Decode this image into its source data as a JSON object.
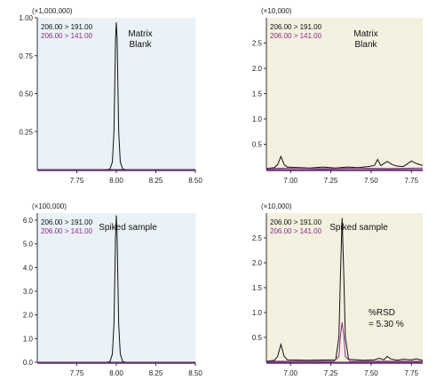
{
  "chart_data": [
    {
      "type": "line",
      "title": "",
      "multiplier_label": "(×1,000,000)",
      "annotation_lines": [
        "Matrix",
        "Blank"
      ],
      "background": "#eaf2f7",
      "xlim": [
        7.5,
        8.5
      ],
      "ylim": [
        0,
        1.0
      ],
      "x_ticks": [
        7.75,
        8.0,
        8.25,
        8.5
      ],
      "x_tick_labels": [
        "7.75",
        "8.00",
        "8.25",
        "8.50"
      ],
      "y_ticks": [
        0.25,
        0.5,
        0.75,
        1.0
      ],
      "y_tick_labels": [
        "0.25",
        "0.50",
        "0.75",
        "1.00"
      ],
      "series": [
        {
          "name": "206.00 > 191.00",
          "color": "#111111",
          "x": [
            7.5,
            7.94,
            7.96,
            7.975,
            7.985,
            7.99,
            7.995,
            8.0,
            8.005,
            8.01,
            8.015,
            8.025,
            8.04,
            8.06,
            8.5
          ],
          "y": [
            0,
            0,
            0.004,
            0.05,
            0.25,
            0.55,
            0.86,
            0.97,
            0.86,
            0.55,
            0.25,
            0.05,
            0.004,
            0,
            0
          ]
        },
        {
          "name": "206.00 > 141.00",
          "color": "#8a2b8a",
          "x": [
            7.5,
            8.5
          ],
          "y": [
            0,
            0
          ]
        }
      ]
    },
    {
      "type": "line",
      "title": "",
      "multiplier_label": "(×10,000)",
      "annotation_lines": [
        "Matrix",
        "Blank"
      ],
      "background": "#f3f0df",
      "xlim": [
        6.85,
        7.82
      ],
      "ylim": [
        0,
        3.0
      ],
      "x_ticks": [
        7.0,
        7.25,
        7.5,
        7.75
      ],
      "x_tick_labels": [
        "7.00",
        "7.25",
        "7.50",
        "7.75"
      ],
      "y_ticks": [
        0.5,
        1.0,
        1.5,
        2.0,
        2.5
      ],
      "y_tick_labels": [
        "0.5",
        "1.0",
        "1.5",
        "2.0",
        "2.5"
      ],
      "series": [
        {
          "name": "206.00 > 191.00",
          "color": "#111111",
          "x": [
            6.85,
            6.9,
            6.92,
            6.94,
            6.96,
            6.98,
            7.05,
            7.12,
            7.2,
            7.28,
            7.35,
            7.42,
            7.48,
            7.52,
            7.54,
            7.56,
            7.6,
            7.63,
            7.66,
            7.7,
            7.75,
            7.78,
            7.82
          ],
          "y": [
            0.02,
            0.04,
            0.1,
            0.26,
            0.1,
            0.05,
            0.04,
            0.03,
            0.05,
            0.03,
            0.05,
            0.04,
            0.06,
            0.08,
            0.2,
            0.08,
            0.16,
            0.1,
            0.07,
            0.06,
            0.17,
            0.12,
            0.08
          ]
        },
        {
          "name": "206.00 > 141.00",
          "color": "#8a2b8a",
          "x": [
            6.85,
            7.0,
            7.2,
            7.4,
            7.6,
            7.82
          ],
          "y": [
            0.02,
            0.03,
            0.02,
            0.03,
            0.02,
            0.03
          ]
        }
      ]
    },
    {
      "type": "line",
      "title": "",
      "multiplier_label": "(×100,000)",
      "annotation_lines": [
        "Spiked sample"
      ],
      "background": "#eaf2f7",
      "xlim": [
        7.5,
        8.5
      ],
      "ylim": [
        0,
        6.3
      ],
      "x_ticks": [
        7.75,
        8.0,
        8.25,
        8.5
      ],
      "x_tick_labels": [
        "7.75",
        "8.00",
        "8.25",
        "8.50"
      ],
      "y_ticks": [
        0,
        1,
        2,
        3,
        4,
        5,
        6
      ],
      "y_tick_labels": [
        "0.0",
        "1.0",
        "2.0",
        "3.0",
        "4.0",
        "5.0",
        "6.0"
      ],
      "series": [
        {
          "name": "206.00 > 191.00",
          "color": "#111111",
          "x": [
            7.5,
            7.94,
            7.96,
            7.975,
            7.985,
            7.99,
            7.995,
            8.0,
            8.005,
            8.01,
            8.015,
            8.025,
            8.04,
            8.06,
            8.5
          ],
          "y": [
            0,
            0,
            0.03,
            0.35,
            1.6,
            3.4,
            5.3,
            6.2,
            5.3,
            3.4,
            1.6,
            0.35,
            0.03,
            0,
            0
          ]
        },
        {
          "name": "206.00 > 141.00",
          "color": "#8a2b8a",
          "x": [
            7.5,
            8.5
          ],
          "y": [
            0,
            0
          ]
        }
      ]
    },
    {
      "type": "line",
      "title": "",
      "multiplier_label": "(×10,000)",
      "annotation_lines": [
        "Spiked sample"
      ],
      "extra_annotation_lines": [
        "%RSD",
        "= 5.30 %"
      ],
      "background": "#f3f0df",
      "xlim": [
        6.85,
        7.82
      ],
      "ylim": [
        0,
        3.0
      ],
      "x_ticks": [
        7.0,
        7.25,
        7.5,
        7.75
      ],
      "x_tick_labels": [
        "7.00",
        "7.25",
        "7.50",
        "7.75"
      ],
      "y_ticks": [
        0.5,
        1.0,
        1.5,
        2.0,
        2.5
      ],
      "y_tick_labels": [
        "0.5",
        "1.0",
        "1.5",
        "2.0",
        "2.5"
      ],
      "series": [
        {
          "name": "206.00 > 191.00",
          "color": "#111111",
          "x": [
            6.85,
            6.9,
            6.92,
            6.94,
            6.96,
            6.98,
            7.1,
            7.28,
            7.3,
            7.31,
            7.32,
            7.33,
            7.34,
            7.36,
            7.45,
            7.52,
            7.55,
            7.58,
            7.6,
            7.62,
            7.66,
            7.7,
            7.75,
            7.78,
            7.82
          ],
          "y": [
            0.02,
            0.04,
            0.12,
            0.36,
            0.12,
            0.05,
            0.04,
            0.05,
            0.5,
            1.8,
            2.9,
            1.8,
            0.5,
            0.06,
            0.04,
            0.05,
            0.08,
            0.05,
            0.12,
            0.07,
            0.04,
            0.06,
            0.05,
            0.07,
            0.04
          ]
        },
        {
          "name": "206.00 > 141.00",
          "color": "#8a2b8a",
          "x": [
            6.85,
            7.27,
            7.3,
            7.31,
            7.32,
            7.33,
            7.34,
            7.37,
            7.82
          ],
          "y": [
            0.02,
            0.02,
            0.12,
            0.55,
            0.8,
            0.55,
            0.12,
            0.02,
            0.02
          ]
        }
      ]
    }
  ]
}
